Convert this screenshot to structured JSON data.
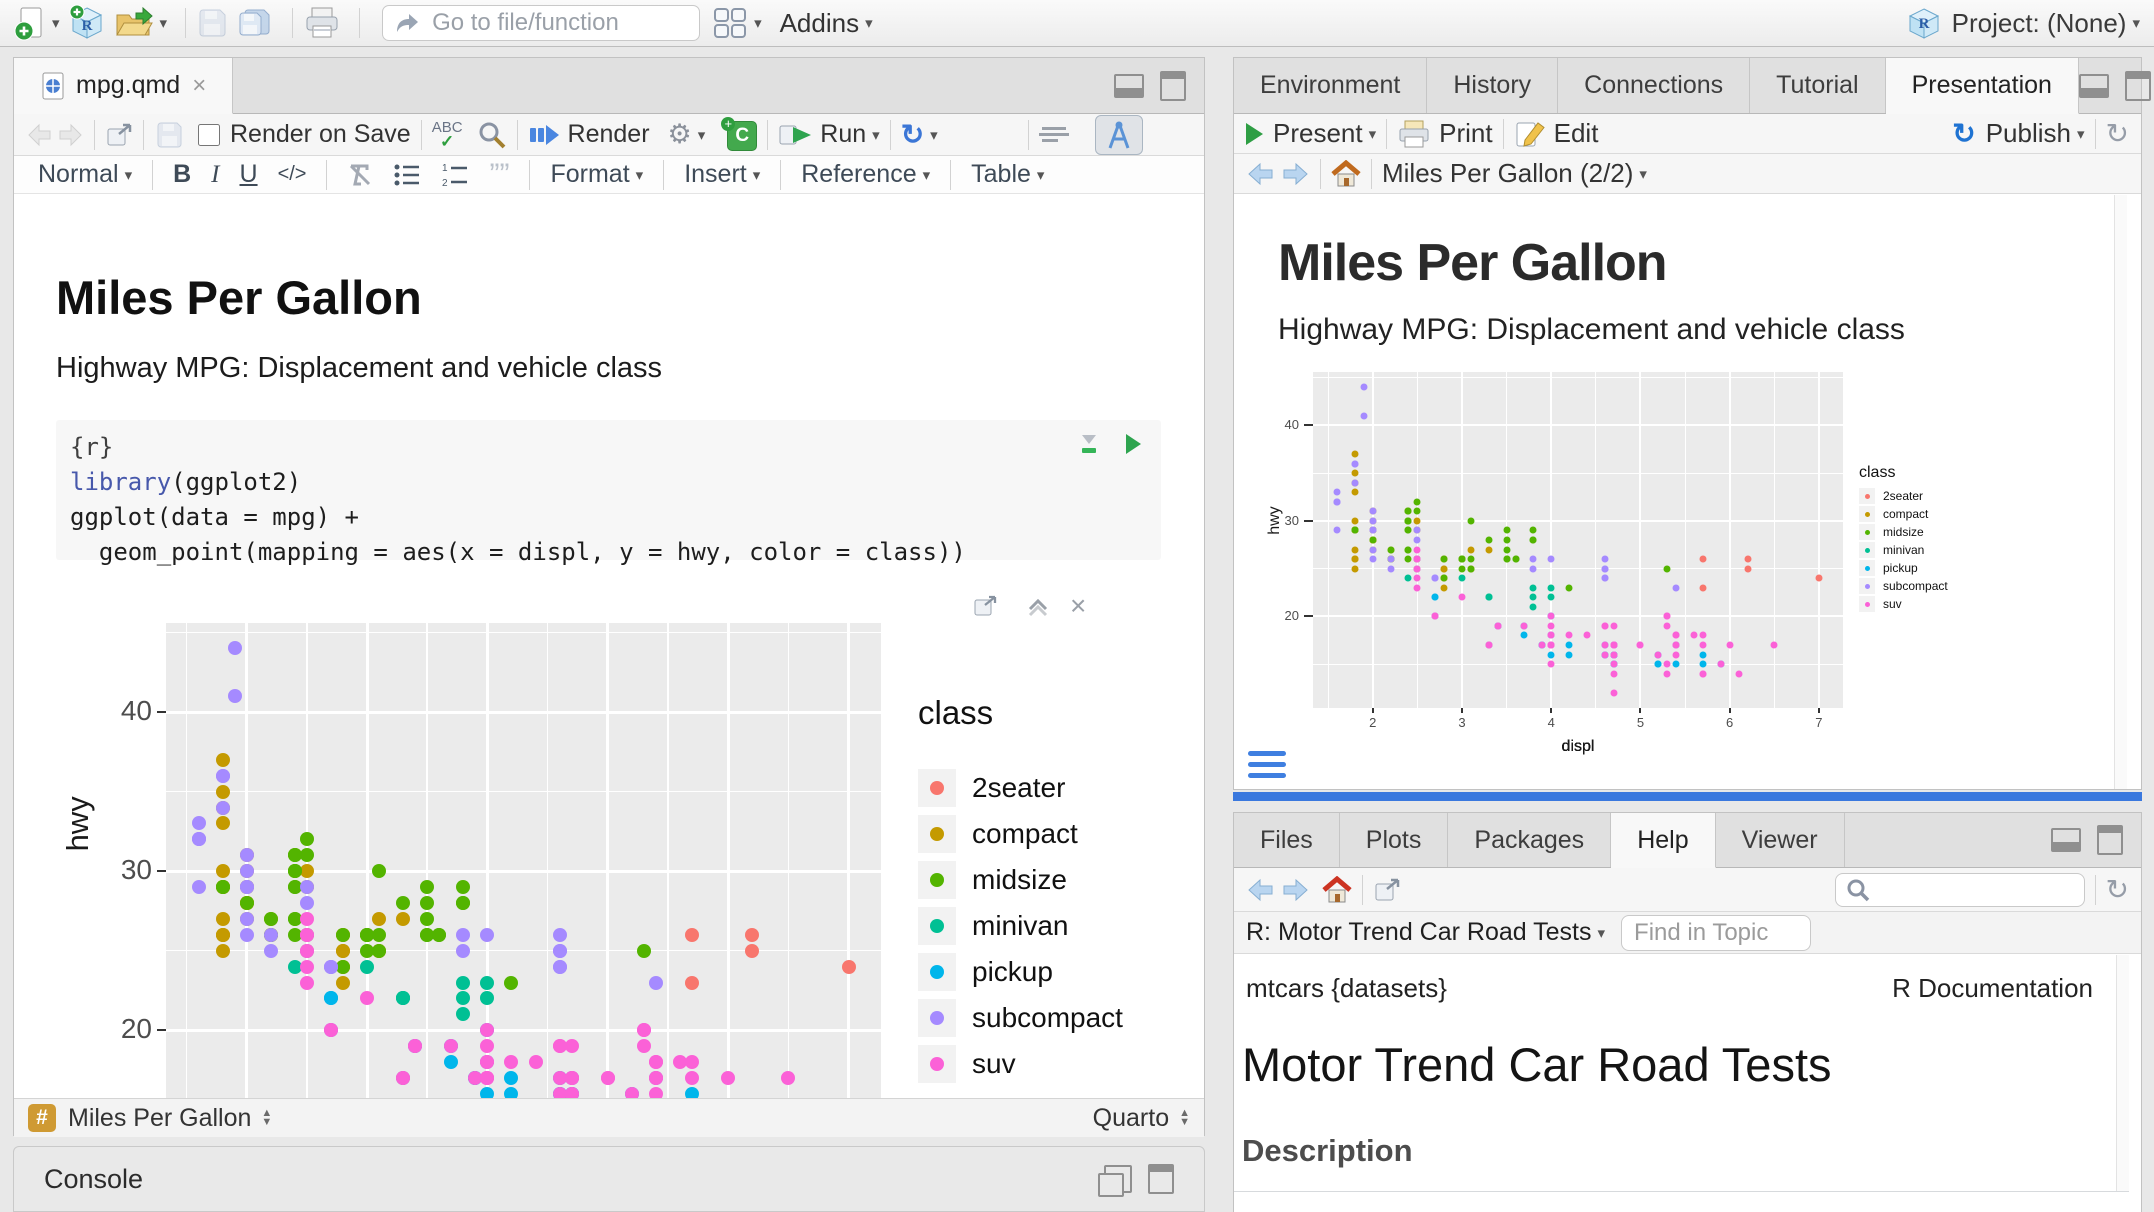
{
  "topbar": {
    "goto_placeholder": "Go to file/function",
    "addins_label": "Addins",
    "project_label": "Project: (None)"
  },
  "editor": {
    "tab_label": "mpg.qmd",
    "render_on_save_label": "Render on Save",
    "spell_label": "ABC",
    "render_label": "Render",
    "run_label": "Run",
    "format_bar": {
      "normal": "Normal",
      "bold": "B",
      "italic": "I",
      "underline": "U",
      "code": "</>",
      "format": "Format",
      "insert": "Insert",
      "reference": "Reference",
      "table": "Table"
    },
    "doc_title": "Miles Per Gallon",
    "doc_subtitle": "Highway MPG: Displacement and vehicle class",
    "chunk": {
      "header": "{r}",
      "kw": "library",
      "kw_rest": "(ggplot2)",
      "line2": "ggplot(data = mpg) +",
      "line3": "  geom_point(mapping = aes(x = displ, y = hwy, color = class))"
    },
    "status": {
      "hash": "#",
      "outline_label": "Miles Per Gallon",
      "mode": "Quarto"
    }
  },
  "console": {
    "title": "Console"
  },
  "presentation": {
    "tabs": [
      "Environment",
      "History",
      "Connections",
      "Tutorial",
      "Presentation"
    ],
    "present_label": "Present",
    "print_label": "Print",
    "edit_label": "Edit",
    "publish_label": "Publish",
    "nav_label": "Miles Per Gallon (2/2)",
    "slide_title": "Miles Per Gallon",
    "slide_subtitle": "Highway MPG: Displacement and vehicle class"
  },
  "help": {
    "tabs": [
      "Files",
      "Plots",
      "Packages",
      "Help",
      "Viewer"
    ],
    "topic_label": "R: Motor Trend Car Road Tests",
    "find_placeholder": "Find in Topic",
    "page_id": "mtcars {datasets}",
    "page_kind": "R Documentation",
    "page_title": "Motor Trend Car Road Tests",
    "section_heading": "Description"
  },
  "icons": {
    "caret": "▾",
    "close": "×",
    "check": "✓",
    "gear": "⚙",
    "refresh": "↻",
    "rerun": "↻",
    "publish": "↻",
    "up": "▲",
    "down": "▼",
    "quote": "””"
  },
  "chart_data": {
    "type": "scatter",
    "title": "",
    "xlabel": "displ",
    "ylabel": "hwy",
    "legend_title": "class",
    "legend_position": "right",
    "grid": true,
    "panel_bg": "#EBEBEB",
    "x_domain": [
      1.33,
      7.27
    ],
    "y_domain": [
      10.4,
      45.6
    ],
    "x_ticks": [
      2,
      3,
      4,
      5,
      6,
      7
    ],
    "y_ticks": [
      20,
      30,
      40
    ],
    "x_minor": [
      1.5,
      2.5,
      3.5,
      4.5,
      5.5,
      6.5
    ],
    "y_minor": [
      15,
      25,
      35,
      45
    ],
    "series": [
      {
        "name": "2seater",
        "color": "#F8766D",
        "points": [
          [
            5.7,
            26
          ],
          [
            5.7,
            23
          ],
          [
            6.2,
            26
          ],
          [
            6.2,
            25
          ],
          [
            7.0,
            24
          ]
        ]
      },
      {
        "name": "compact",
        "color": "#C49A00",
        "points": [
          [
            1.8,
            29
          ],
          [
            1.8,
            29
          ],
          [
            2.0,
            31
          ],
          [
            2.0,
            30
          ],
          [
            2.8,
            26
          ],
          [
            2.8,
            26
          ],
          [
            3.1,
            27
          ],
          [
            1.8,
            26
          ],
          [
            1.8,
            25
          ],
          [
            2.0,
            28
          ],
          [
            2.0,
            27
          ],
          [
            2.8,
            25
          ],
          [
            2.8,
            25
          ],
          [
            3.1,
            25
          ],
          [
            3.1,
            25
          ],
          [
            2.2,
            26
          ],
          [
            2.2,
            27
          ],
          [
            2.4,
            30
          ],
          [
            2.4,
            31
          ],
          [
            3.0,
            26
          ],
          [
            3.0,
            26
          ],
          [
            3.3,
            27
          ],
          [
            1.8,
            30
          ],
          [
            1.8,
            33
          ],
          [
            1.8,
            34
          ],
          [
            1.8,
            35
          ],
          [
            1.8,
            37
          ],
          [
            1.8,
            29
          ],
          [
            1.8,
            29
          ],
          [
            2.0,
            28
          ],
          [
            2.0,
            29
          ],
          [
            1.8,
            26
          ],
          [
            1.8,
            27
          ],
          [
            2.0,
            28
          ],
          [
            2.0,
            29
          ],
          [
            2.8,
            24
          ],
          [
            1.8,
            29
          ],
          [
            1.8,
            26
          ],
          [
            2.0,
            28
          ],
          [
            2.0,
            29
          ],
          [
            2.0,
            29
          ],
          [
            2.5,
            29
          ],
          [
            2.5,
            30
          ],
          [
            2.8,
            23
          ],
          [
            2.8,
            24
          ],
          [
            2.2,
            26
          ],
          [
            2.5,
            25
          ]
        ]
      },
      {
        "name": "midsize",
        "color": "#53B400",
        "points": [
          [
            2.8,
            24
          ],
          [
            3.1,
            25
          ],
          [
            4.2,
            23
          ],
          [
            2.4,
            27
          ],
          [
            2.4,
            30
          ],
          [
            3.1,
            26
          ],
          [
            3.5,
            29
          ],
          [
            3.6,
            26
          ],
          [
            2.4,
            26
          ],
          [
            2.4,
            27
          ],
          [
            2.4,
            30
          ],
          [
            2.4,
            31
          ],
          [
            2.5,
            26
          ],
          [
            2.5,
            26
          ],
          [
            3.3,
            28
          ],
          [
            2.4,
            29
          ],
          [
            2.4,
            29
          ],
          [
            2.5,
            31
          ],
          [
            2.5,
            32
          ],
          [
            3.5,
            26
          ],
          [
            3.5,
            27
          ],
          [
            3.0,
            26
          ],
          [
            3.0,
            25
          ],
          [
            3.5,
            26
          ],
          [
            3.1,
            30
          ],
          [
            3.8,
            28
          ],
          [
            3.8,
            28
          ],
          [
            3.8,
            29
          ],
          [
            5.3,
            25
          ],
          [
            2.2,
            26
          ],
          [
            2.2,
            27
          ],
          [
            2.4,
            30
          ],
          [
            2.4,
            31
          ],
          [
            3.0,
            26
          ],
          [
            3.0,
            26
          ],
          [
            3.5,
            28
          ],
          [
            1.8,
            29
          ],
          [
            1.8,
            29
          ],
          [
            2.0,
            28
          ],
          [
            2.8,
            26
          ],
          [
            3.6,
            26
          ]
        ]
      },
      {
        "name": "minivan",
        "color": "#00C094",
        "points": [
          [
            2.4,
            24
          ],
          [
            3.0,
            24
          ],
          [
            3.3,
            22
          ],
          [
            3.3,
            22
          ],
          [
            3.3,
            22
          ],
          [
            3.3,
            17
          ],
          [
            3.8,
            22
          ],
          [
            3.8,
            21
          ],
          [
            3.8,
            23
          ],
          [
            4.0,
            22
          ],
          [
            4.0,
            23
          ]
        ]
      },
      {
        "name": "pickup",
        "color": "#00B6EB",
        "points": [
          [
            3.7,
            19
          ],
          [
            3.7,
            18
          ],
          [
            3.9,
            17
          ],
          [
            3.9,
            17
          ],
          [
            4.7,
            16
          ],
          [
            4.7,
            16
          ],
          [
            5.2,
            15
          ],
          [
            5.2,
            15
          ],
          [
            4.7,
            16
          ],
          [
            4.7,
            15
          ],
          [
            4.7,
            16
          ],
          [
            4.7,
            15
          ],
          [
            4.7,
            17
          ],
          [
            5.2,
            16
          ],
          [
            5.7,
            16
          ],
          [
            5.9,
            15
          ],
          [
            4.2,
            17
          ],
          [
            4.2,
            16
          ],
          [
            4.6,
            16
          ],
          [
            4.6,
            17
          ],
          [
            4.6,
            16
          ],
          [
            5.4,
            15
          ],
          [
            5.4,
            17
          ],
          [
            2.7,
            22
          ],
          [
            2.7,
            22
          ],
          [
            2.7,
            20
          ],
          [
            3.4,
            19
          ],
          [
            3.4,
            19
          ],
          [
            4.0,
            18
          ],
          [
            4.0,
            20
          ],
          [
            4.0,
            16
          ],
          [
            4.7,
            17
          ],
          [
            5.7,
            15
          ]
        ]
      },
      {
        "name": "subcompact",
        "color": "#A58AFF",
        "points": [
          [
            3.8,
            26
          ],
          [
            3.8,
            25
          ],
          [
            4.0,
            26
          ],
          [
            4.6,
            24
          ],
          [
            4.6,
            25
          ],
          [
            4.6,
            26
          ],
          [
            4.6,
            25
          ],
          [
            4.6,
            24
          ],
          [
            5.4,
            23
          ],
          [
            1.6,
            33
          ],
          [
            1.6,
            32
          ],
          [
            1.6,
            32
          ],
          [
            1.6,
            29
          ],
          [
            1.6,
            32
          ],
          [
            1.8,
            34
          ],
          [
            1.8,
            36
          ],
          [
            1.8,
            36
          ],
          [
            2.0,
            29
          ],
          [
            2.0,
            26
          ],
          [
            2.0,
            27
          ],
          [
            2.0,
            30
          ],
          [
            2.0,
            31
          ],
          [
            2.7,
            24
          ],
          [
            2.7,
            24
          ],
          [
            2.7,
            24
          ],
          [
            1.9,
            44
          ],
          [
            1.9,
            41
          ],
          [
            2.0,
            29
          ],
          [
            2.0,
            29
          ],
          [
            2.5,
            28
          ],
          [
            2.5,
            29
          ],
          [
            2.2,
            26
          ],
          [
            2.2,
            25
          ],
          [
            2.5,
            25
          ],
          [
            2.5,
            26
          ]
        ]
      },
      {
        "name": "suv",
        "color": "#FB61D7",
        "points": [
          [
            5.3,
            20
          ],
          [
            5.3,
            15
          ],
          [
            5.3,
            20
          ],
          [
            5.7,
            17
          ],
          [
            6.0,
            17
          ],
          [
            5.3,
            14
          ],
          [
            5.3,
            19
          ],
          [
            5.7,
            14
          ],
          [
            6.5,
            17
          ],
          [
            3.9,
            17
          ],
          [
            4.7,
            17
          ],
          [
            4.7,
            17
          ],
          [
            4.7,
            16
          ],
          [
            5.2,
            16
          ],
          [
            5.9,
            15
          ],
          [
            4.7,
            14
          ],
          [
            4.6,
            17
          ],
          [
            5.4,
            17
          ],
          [
            5.4,
            18
          ],
          [
            4.0,
            17
          ],
          [
            4.0,
            17
          ],
          [
            4.0,
            17
          ],
          [
            4.0,
            18
          ],
          [
            4.6,
            19
          ],
          [
            5.0,
            17
          ],
          [
            3.0,
            22
          ],
          [
            3.7,
            19
          ],
          [
            4.0,
            17
          ],
          [
            4.7,
            17
          ],
          [
            4.7,
            15
          ],
          [
            4.7,
            19
          ],
          [
            4.7,
            12
          ],
          [
            5.7,
            14
          ],
          [
            6.1,
            14
          ],
          [
            4.0,
            15
          ],
          [
            4.2,
            18
          ],
          [
            4.4,
            18
          ],
          [
            4.6,
            16
          ],
          [
            5.4,
            17
          ],
          [
            5.4,
            16
          ],
          [
            5.4,
            18
          ],
          [
            4.0,
            17
          ],
          [
            4.0,
            19
          ],
          [
            4.6,
            19
          ],
          [
            5.0,
            17
          ],
          [
            3.3,
            17
          ],
          [
            3.3,
            17
          ],
          [
            4.0,
            18
          ],
          [
            5.6,
            18
          ],
          [
            2.5,
            26
          ],
          [
            2.5,
            27
          ],
          [
            2.5,
            26
          ],
          [
            2.5,
            25
          ],
          [
            2.5,
            23
          ],
          [
            2.5,
            24
          ],
          [
            2.7,
            20
          ],
          [
            2.7,
            20
          ],
          [
            3.4,
            19
          ],
          [
            3.4,
            19
          ],
          [
            4.0,
            20
          ],
          [
            4.7,
            17
          ],
          [
            4.7,
            16
          ],
          [
            5.7,
            18
          ]
        ]
      }
    ]
  }
}
